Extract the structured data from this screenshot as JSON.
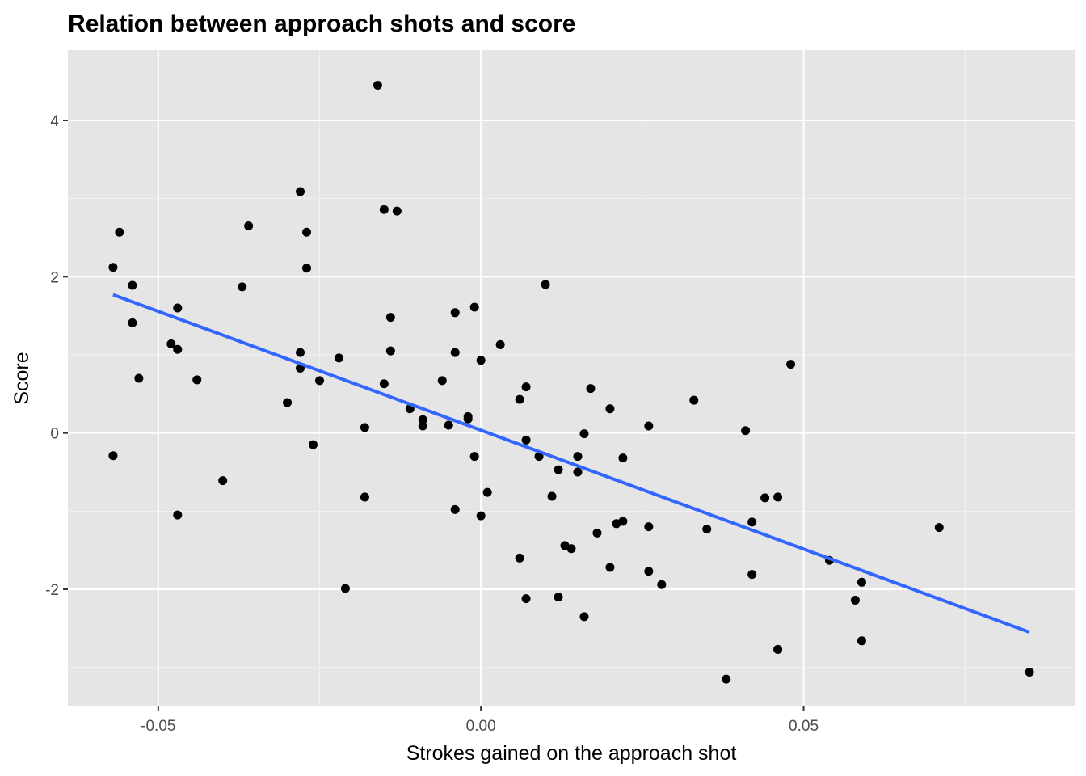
{
  "chart_data": {
    "type": "scatter",
    "title": "Relation between approach shots and score",
    "xlabel": "Strokes gained on the approach shot",
    "ylabel": "Score",
    "xlim": [
      -0.064,
      0.092
    ],
    "ylim": [
      -3.5,
      4.9
    ],
    "x_ticks": [
      -0.05,
      0.0,
      0.05
    ],
    "x_tick_labels": [
      "-0.05",
      "0.00",
      "0.05"
    ],
    "y_ticks": [
      -2,
      0,
      2,
      4
    ],
    "y_tick_labels": [
      "-2",
      "0",
      "2",
      "4"
    ],
    "grid": true,
    "background": "#e5e5e5",
    "point_color": "#000000",
    "trend_line": {
      "color": "#3366ff",
      "x": [
        -0.057,
        0.085
      ],
      "y": [
        1.77,
        -2.55
      ]
    },
    "points": [
      {
        "x": -0.057,
        "y": 2.12
      },
      {
        "x": -0.056,
        "y": 2.57
      },
      {
        "x": -0.054,
        "y": 1.89
      },
      {
        "x": -0.054,
        "y": 1.41
      },
      {
        "x": -0.053,
        "y": 0.7
      },
      {
        "x": -0.057,
        "y": -0.29
      },
      {
        "x": -0.048,
        "y": 1.14
      },
      {
        "x": -0.047,
        "y": 1.6
      },
      {
        "x": -0.047,
        "y": 1.07
      },
      {
        "x": -0.047,
        "y": -1.05
      },
      {
        "x": -0.044,
        "y": 0.68
      },
      {
        "x": -0.04,
        "y": -0.61
      },
      {
        "x": -0.036,
        "y": 2.65
      },
      {
        "x": -0.037,
        "y": 1.87
      },
      {
        "x": -0.03,
        "y": 0.39
      },
      {
        "x": -0.028,
        "y": 3.09
      },
      {
        "x": -0.027,
        "y": 2.57
      },
      {
        "x": -0.027,
        "y": 2.11
      },
      {
        "x": -0.028,
        "y": 1.03
      },
      {
        "x": -0.028,
        "y": 0.83
      },
      {
        "x": -0.026,
        "y": -0.15
      },
      {
        "x": -0.025,
        "y": 0.67
      },
      {
        "x": -0.022,
        "y": 0.96
      },
      {
        "x": -0.021,
        "y": -1.99
      },
      {
        "x": -0.018,
        "y": 0.07
      },
      {
        "x": -0.018,
        "y": -0.82
      },
      {
        "x": -0.016,
        "y": 4.45
      },
      {
        "x": -0.015,
        "y": 2.86
      },
      {
        "x": -0.013,
        "y": 2.84
      },
      {
        "x": -0.015,
        "y": 0.63
      },
      {
        "x": -0.014,
        "y": 1.48
      },
      {
        "x": -0.014,
        "y": 1.05
      },
      {
        "x": -0.011,
        "y": 0.31
      },
      {
        "x": -0.009,
        "y": 0.17
      },
      {
        "x": -0.009,
        "y": 0.09
      },
      {
        "x": -0.006,
        "y": 0.67
      },
      {
        "x": -0.005,
        "y": 0.1
      },
      {
        "x": -0.004,
        "y": 1.54
      },
      {
        "x": -0.004,
        "y": 1.03
      },
      {
        "x": -0.004,
        "y": -0.98
      },
      {
        "x": -0.002,
        "y": 0.21
      },
      {
        "x": -0.002,
        "y": 0.18
      },
      {
        "x": -0.001,
        "y": 1.61
      },
      {
        "x": -0.001,
        "y": -0.3
      },
      {
        "x": 0.0,
        "y": 0.93
      },
      {
        "x": 0.0,
        "y": -1.06
      },
      {
        "x": 0.001,
        "y": -0.76
      },
      {
        "x": 0.003,
        "y": 1.13
      },
      {
        "x": 0.006,
        "y": 0.43
      },
      {
        "x": 0.006,
        "y": -1.6
      },
      {
        "x": 0.007,
        "y": 0.59
      },
      {
        "x": 0.007,
        "y": -0.09
      },
      {
        "x": 0.007,
        "y": -2.12
      },
      {
        "x": 0.009,
        "y": -0.3
      },
      {
        "x": 0.01,
        "y": 1.9
      },
      {
        "x": 0.011,
        "y": -0.81
      },
      {
        "x": 0.012,
        "y": -0.47
      },
      {
        "x": 0.012,
        "y": -2.1
      },
      {
        "x": 0.013,
        "y": -1.44
      },
      {
        "x": 0.014,
        "y": -1.48
      },
      {
        "x": 0.015,
        "y": -0.3
      },
      {
        "x": 0.015,
        "y": -0.5
      },
      {
        "x": 0.016,
        "y": -0.01
      },
      {
        "x": 0.016,
        "y": -2.35
      },
      {
        "x": 0.017,
        "y": 0.57
      },
      {
        "x": 0.018,
        "y": -1.28
      },
      {
        "x": 0.02,
        "y": 0.31
      },
      {
        "x": 0.02,
        "y": -1.72
      },
      {
        "x": 0.021,
        "y": -1.16
      },
      {
        "x": 0.022,
        "y": -1.13
      },
      {
        "x": 0.022,
        "y": -0.32
      },
      {
        "x": 0.026,
        "y": 0.09
      },
      {
        "x": 0.026,
        "y": -1.2
      },
      {
        "x": 0.026,
        "y": -1.77
      },
      {
        "x": 0.028,
        "y": -1.94
      },
      {
        "x": 0.033,
        "y": 0.42
      },
      {
        "x": 0.035,
        "y": -1.23
      },
      {
        "x": 0.038,
        "y": -3.15
      },
      {
        "x": 0.041,
        "y": 0.03
      },
      {
        "x": 0.042,
        "y": -1.14
      },
      {
        "x": 0.042,
        "y": -1.81
      },
      {
        "x": 0.044,
        "y": -0.83
      },
      {
        "x": 0.046,
        "y": -0.82
      },
      {
        "x": 0.046,
        "y": -2.77
      },
      {
        "x": 0.048,
        "y": 0.88
      },
      {
        "x": 0.054,
        "y": -1.63
      },
      {
        "x": 0.058,
        "y": -2.14
      },
      {
        "x": 0.059,
        "y": -1.91
      },
      {
        "x": 0.059,
        "y": -2.66
      },
      {
        "x": 0.071,
        "y": -1.21
      },
      {
        "x": 0.085,
        "y": -3.06
      }
    ]
  }
}
